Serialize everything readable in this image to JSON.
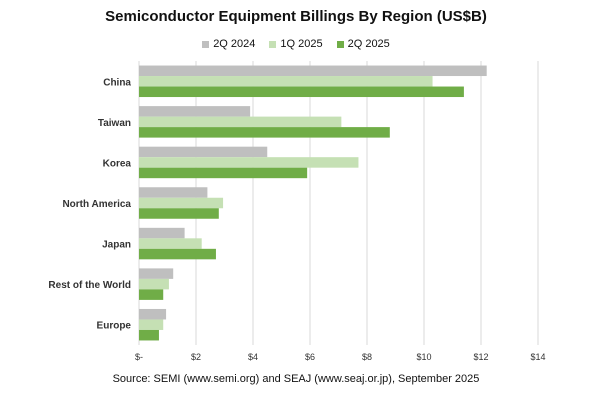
{
  "chart_data": {
    "type": "bar",
    "orientation": "horizontal",
    "title": "Semiconductor Equipment Billings By Region (US$B)",
    "categories": [
      "China",
      "Taiwan",
      "Korea",
      "North America",
      "Japan",
      "Rest of the World",
      "Europe"
    ],
    "series": [
      {
        "name": "2Q 2024",
        "color": "#BFBFBF",
        "values": [
          12.2,
          3.9,
          4.5,
          2.4,
          1.6,
          1.2,
          0.95
        ]
      },
      {
        "name": "1Q 2025",
        "color": "#C5E0B4",
        "values": [
          10.3,
          7.1,
          7.7,
          2.95,
          2.2,
          1.05,
          0.85
        ]
      },
      {
        "name": "2Q 2025",
        "color": "#70AD47",
        "values": [
          11.4,
          8.8,
          5.9,
          2.8,
          2.7,
          0.85,
          0.7
        ]
      }
    ],
    "xlim": [
      0,
      14
    ],
    "xticks": [
      0,
      2,
      4,
      6,
      8,
      10,
      12,
      14
    ],
    "xtick_labels": [
      "$-",
      "$2",
      "$4",
      "$6",
      "$8",
      "$10",
      "$12",
      "$14"
    ],
    "grid": "vertical",
    "legend_position": "top",
    "source": "Source: SEMI (www.semi.org)  and SEAJ (www.seaj.or.jp), September 2025"
  }
}
